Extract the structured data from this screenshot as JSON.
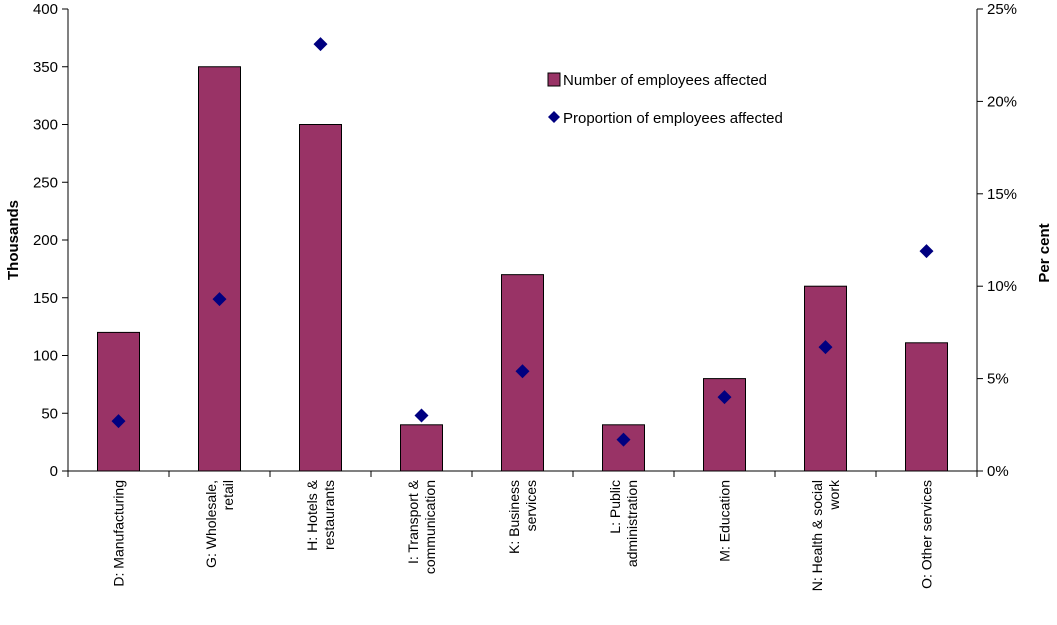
{
  "chart_data": {
    "type": "bar",
    "categories": [
      [
        "D: Manufacturing"
      ],
      [
        "G: Wholesale,",
        "retail"
      ],
      [
        "H: Hotels &",
        "restaurants"
      ],
      [
        "I: Transport &",
        "communication"
      ],
      [
        "K: Business",
        "services"
      ],
      [
        "L: Public",
        "administration"
      ],
      [
        "M: Education"
      ],
      [
        "N: Health & social",
        "work"
      ],
      [
        "O: Other services"
      ]
    ],
    "series": [
      {
        "name": "Number of employees affected",
        "type": "bar",
        "axis": "left",
        "color": "#993366",
        "values": [
          120,
          350,
          300,
          40,
          170,
          40,
          80,
          160,
          111
        ]
      },
      {
        "name": "Proportion of employees affected",
        "type": "scatter",
        "axis": "right",
        "color": "#000080",
        "marker": "diamond",
        "values": [
          2.7,
          9.3,
          23.1,
          3.0,
          5.4,
          1.7,
          4.0,
          6.7,
          11.9
        ]
      }
    ],
    "ylabel": "Thousands",
    "y2label": "Per cent",
    "ylim": [
      0,
      400
    ],
    "yticks": [
      "0",
      "50",
      "100",
      "150",
      "200",
      "250",
      "300",
      "350",
      "400"
    ],
    "y2lim": [
      0,
      25
    ],
    "y2ticks": [
      "0%",
      "5%",
      "10%",
      "15%",
      "20%",
      "25%"
    ],
    "grid": false,
    "legend": "top-right, inside plot"
  }
}
